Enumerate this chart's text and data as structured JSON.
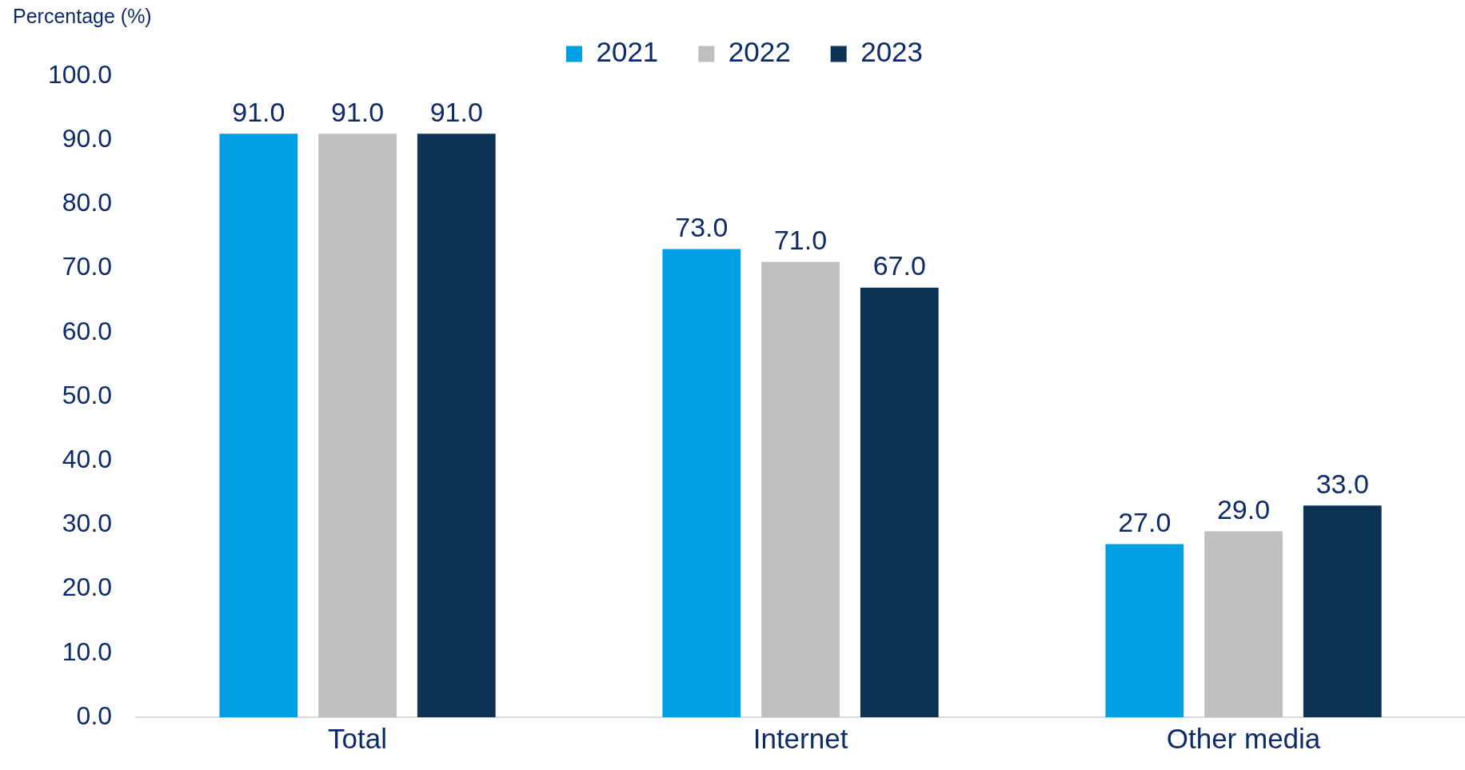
{
  "chart_data": {
    "type": "bar",
    "ylabel": "Percentage (%)",
    "categories": [
      "Total",
      "Internet",
      "Other media"
    ],
    "series": [
      {
        "name": "2021",
        "color": "#009fe3",
        "values": [
          91,
          73,
          27
        ],
        "value_labels": [
          "91.0",
          "73.0",
          "27.0"
        ]
      },
      {
        "name": "2022",
        "color": "#bfbfbf",
        "values": [
          91,
          71,
          29
        ],
        "value_labels": [
          "91.0",
          "71.0",
          "29.0"
        ]
      },
      {
        "name": "2023",
        "color": "#0d3354",
        "values": [
          91,
          67,
          33
        ],
        "value_labels": [
          "91.0",
          "67.0",
          "33.0"
        ]
      }
    ],
    "ylim": [
      0,
      100
    ],
    "yticks": [
      {
        "value": 0,
        "label": "0.0"
      },
      {
        "value": 10,
        "label": "10.0"
      },
      {
        "value": 20,
        "label": "20.0"
      },
      {
        "value": 30,
        "label": "30.0"
      },
      {
        "value": 40,
        "label": "40.0"
      },
      {
        "value": 50,
        "label": "50.0"
      },
      {
        "value": 60,
        "label": "60.0"
      },
      {
        "value": 70,
        "label": "70.0"
      },
      {
        "value": 80,
        "label": "80.0"
      },
      {
        "value": 90,
        "label": "90.0"
      },
      {
        "value": 100,
        "label": "100.0"
      }
    ],
    "grid": false,
    "legend": "top"
  }
}
